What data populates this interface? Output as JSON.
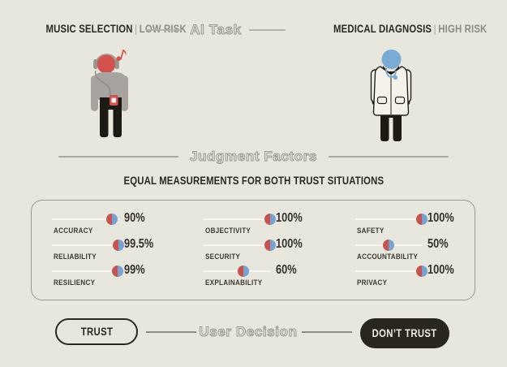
{
  "canvas": {
    "bg": "#e8e7de"
  },
  "colors": {
    "accent_red": "#c5534f",
    "accent_blue": "#7aa2cf",
    "dark": "#2b2823",
    "muted_gray": "#8e8c81",
    "outline_title": "#9b998e",
    "slider_track": "#f7f6f0",
    "dont_trust_bg": "#29261f"
  },
  "header": {
    "center_title": "AI Task",
    "left": {
      "task": "MUSIC SELECTION",
      "separator": "|",
      "risk": "LOW RISK"
    },
    "right": {
      "task": "MEDICAL DIAGNOSIS",
      "separator": "|",
      "risk": "HIGH RISK"
    }
  },
  "figures": {
    "left": {
      "name": "person listening to music",
      "head_color": "#d2524e"
    },
    "right": {
      "name": "doctor with stethoscope",
      "head_color": "#7aabd5"
    }
  },
  "judgment": {
    "section_title": "Judgment Factors",
    "subtitle": "EQUAL MEASUREMENTS FOR BOTH TRUST SITUATIONS",
    "columns": [
      {
        "factors": [
          {
            "label": "ACCURACY",
            "value": "90%",
            "pct": 90
          },
          {
            "label": "RELIABILITY",
            "value": "99.5%",
            "pct": 99.5
          },
          {
            "label": "RESILIENCY",
            "value": "99%",
            "pct": 99
          }
        ]
      },
      {
        "factors": [
          {
            "label": "OBJECTIVITY",
            "value": "100%",
            "pct": 100
          },
          {
            "label": "SECURITY",
            "value": "100%",
            "pct": 100
          },
          {
            "label": "EXPLAINABILITY",
            "value": "60%",
            "pct": 60
          }
        ]
      },
      {
        "factors": [
          {
            "label": "SAFETY",
            "value": "100%",
            "pct": 100
          },
          {
            "label": "ACCOUNTABILITY",
            "value": "50%",
            "pct": 50
          },
          {
            "label": "PRIVACY",
            "value": "100%",
            "pct": 100
          }
        ]
      }
    ]
  },
  "decision": {
    "section_title": "User Decision",
    "trust_label": "TRUST",
    "dont_trust_label": "DON’T TRUST"
  }
}
